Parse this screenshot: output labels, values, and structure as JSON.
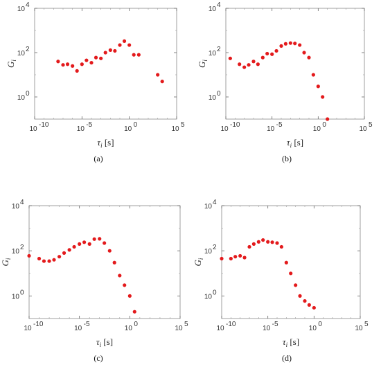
{
  "chart_data": [
    {
      "type": "scatter",
      "caption": "(a)",
      "xlabel": {
        "symbol": "τ",
        "sub": "i",
        "unit": " [s]"
      },
      "ylabel": {
        "symbol": "G",
        "sub": "i"
      },
      "xscale": "log",
      "yscale": "log",
      "xlim": [
        1e-10,
        100000.0
      ],
      "ylim": [
        0.1,
        10000
      ],
      "xticks": [
        "10",
        "10",
        "10",
        "10"
      ],
      "xticks_exp": [
        "-10",
        "-5",
        "0",
        "5"
      ],
      "yticks": [
        "10",
        "10",
        "10"
      ],
      "yticks_exp": [
        "0",
        "2",
        "4"
      ],
      "marker_color": "#e31a1c",
      "series": [
        {
          "x": [
            3e-08,
            1e-07,
            3e-07,
            1e-06,
            3e-06,
            1e-05,
            3e-05,
            0.0001,
            0.0003,
            0.001,
            0.003,
            0.01,
            0.03,
            0.1,
            0.3,
            1,
            3,
            10,
            30,
            100,
            1000,
            3000
          ],
          "y": [
            40,
            28,
            30,
            25,
            15,
            30,
            45,
            35,
            60,
            55,
            100,
            130,
            120,
            220,
            330,
            220,
            80,
            80,
            null,
            null,
            10,
            5
          ]
        }
      ]
    },
    {
      "type": "scatter",
      "caption": "(b)",
      "xlabel": {
        "symbol": "τ",
        "sub": "i",
        "unit": " [s]"
      },
      "ylabel": {
        "symbol": "G",
        "sub": "i"
      },
      "xscale": "log",
      "yscale": "log",
      "xlim": [
        1e-10,
        100000.0
      ],
      "ylim": [
        0.1,
        10000
      ],
      "xticks": [
        "10",
        "10",
        "10",
        "10"
      ],
      "xticks_exp": [
        "-10",
        "-5",
        "0",
        "5"
      ],
      "yticks": [
        "10",
        "10",
        "10"
      ],
      "yticks_exp": [
        "0",
        "2",
        "4"
      ],
      "marker_color": "#e31a1c",
      "series": [
        {
          "x": [
            3e-10,
            3e-09,
            1e-08,
            3e-08,
            1e-07,
            3e-07,
            1e-06,
            3e-06,
            1e-05,
            3e-05,
            0.0001,
            0.0003,
            0.001,
            0.003,
            0.01,
            0.03,
            0.1,
            0.3,
            1,
            3,
            10,
            30,
            100,
            1000
          ],
          "y": [
            55,
            30,
            22,
            28,
            40,
            30,
            60,
            90,
            85,
            120,
            200,
            250,
            270,
            260,
            220,
            100,
            60,
            10,
            3,
            1,
            0.1,
            null,
            null,
            null
          ]
        }
      ]
    },
    {
      "type": "scatter",
      "caption": "(c)",
      "xlabel": {
        "symbol": "τ",
        "sub": "i",
        "unit": " [s]"
      },
      "ylabel": {
        "symbol": "G",
        "sub": "i"
      },
      "xscale": "log",
      "yscale": "log",
      "xlim": [
        1e-10,
        100000.0
      ],
      "ylim": [
        0.1,
        10000
      ],
      "xticks": [
        "10",
        "10",
        "10",
        "10"
      ],
      "xticks_exp": [
        "-10",
        "-5",
        "0",
        "5"
      ],
      "yticks": [
        "10",
        "10",
        "10"
      ],
      "yticks_exp": [
        "0",
        "2",
        "4"
      ],
      "marker_color": "#e31a1c",
      "series": [
        {
          "x": [
            1e-10,
            1e-09,
            3e-09,
            1e-08,
            3e-08,
            1e-07,
            3e-07,
            1e-06,
            3e-06,
            1e-05,
            3e-05,
            0.0001,
            0.0003,
            0.001,
            0.003,
            0.01,
            0.03,
            0.1,
            0.3,
            1,
            3,
            10,
            30,
            100,
            1000,
            3000
          ],
          "y": [
            60,
            45,
            35,
            35,
            40,
            55,
            80,
            110,
            150,
            200,
            240,
            200,
            330,
            340,
            220,
            100,
            30,
            8,
            3,
            1,
            0.2,
            null,
            null,
            null,
            null,
            null
          ]
        }
      ]
    },
    {
      "type": "scatter",
      "caption": "(d)",
      "xlabel": {
        "symbol": "τ",
        "sub": "i",
        "unit": " [s]"
      },
      "ylabel": {
        "symbol": "G",
        "sub": "i"
      },
      "xscale": "log",
      "yscale": "log",
      "xlim": [
        1e-10,
        100000.0
      ],
      "ylim": [
        0.1,
        10000
      ],
      "xticks": [
        "10",
        "10",
        "10",
        "10"
      ],
      "xticks_exp": [
        "-10",
        "-5",
        "0",
        "5"
      ],
      "yticks": [
        "10",
        "10",
        "10"
      ],
      "yticks_exp": [
        "0",
        "2",
        "4"
      ],
      "marker_color": "#e31a1c",
      "series": [
        {
          "x": [
            1e-10,
            1e-09,
            3e-09,
            1e-08,
            3e-08,
            1e-07,
            3e-07,
            1e-06,
            3e-06,
            1e-05,
            3e-05,
            0.0001,
            0.0003,
            0.001,
            0.003,
            0.01,
            0.03,
            0.1,
            0.3,
            1,
            3,
            10,
            30,
            100,
            1000
          ],
          "y": [
            45,
            45,
            55,
            60,
            50,
            150,
            200,
            250,
            300,
            250,
            240,
            220,
            150,
            30,
            10,
            3,
            1,
            0.6,
            0.4,
            0.3,
            null,
            null,
            null,
            null,
            null
          ]
        }
      ]
    }
  ]
}
